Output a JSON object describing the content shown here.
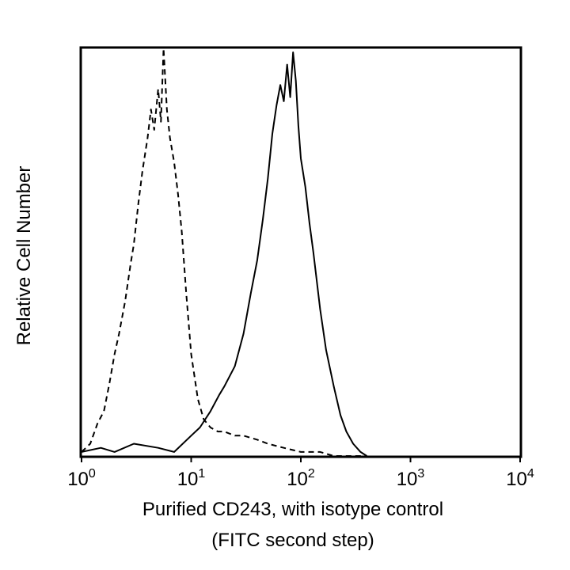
{
  "chart_data": {
    "type": "line",
    "title": "",
    "xlabel_lines": [
      "Purified CD243, with isotype control",
      "(FITC second step)"
    ],
    "ylabel": "Relative Cell Number",
    "x_scale": "log",
    "xlim": [
      1,
      10000
    ],
    "ylim": [
      0,
      100
    ],
    "x_ticks": [
      {
        "value": 1,
        "base": "10",
        "exp": "0"
      },
      {
        "value": 10,
        "base": "10",
        "exp": "1"
      },
      {
        "value": 100,
        "base": "10",
        "exp": "2"
      },
      {
        "value": 1000,
        "base": "10",
        "exp": "3"
      },
      {
        "value": 10000,
        "base": "10",
        "exp": "4"
      }
    ],
    "grid": false,
    "legend": "none",
    "series": [
      {
        "style": "dashed",
        "color": "#000000",
        "x": [
          1.0,
          1.2,
          1.4,
          1.6,
          1.8,
          2.0,
          2.2,
          2.5,
          2.8,
          3.0,
          3.3,
          3.6,
          4.0,
          4.3,
          4.6,
          5.0,
          5.3,
          5.6,
          6.0,
          6.4,
          7.0,
          7.6,
          8.2,
          9.0,
          10.0,
          11.5,
          13.0,
          15.0,
          17.5,
          20.0,
          25.0,
          30.0,
          40.0,
          50.0,
          70.0,
          100.0,
          150.0,
          200.0,
          300.0,
          400.0
        ],
        "y": [
          1,
          3,
          8,
          11,
          18,
          25,
          30,
          38,
          47,
          52,
          62,
          70,
          78,
          85,
          80,
          90,
          82,
          100,
          85,
          78,
          72,
          64,
          55,
          40,
          25,
          14,
          9,
          7,
          6,
          6,
          5,
          5,
          4,
          3,
          2,
          1,
          1,
          0,
          0,
          0
        ]
      },
      {
        "style": "solid",
        "color": "#000000",
        "x": [
          1.0,
          1.5,
          2.0,
          3.0,
          5.0,
          7.0,
          10.0,
          12.0,
          15.0,
          18.0,
          20.0,
          25.0,
          30.0,
          35.0,
          40.0,
          45.0,
          50.0,
          55.0,
          60.0,
          65.0,
          70.0,
          75.0,
          80.0,
          85.0,
          90.0,
          95.0,
          100.0,
          110.0,
          120.0,
          130.0,
          150.0,
          170.0,
          200.0,
          230.0,
          260.0,
          300.0,
          350.0,
          400.0
        ],
        "y": [
          1,
          2,
          1,
          3,
          2,
          1,
          5,
          7,
          11,
          15,
          17,
          22,
          30,
          40,
          48,
          58,
          68,
          79,
          86,
          91,
          87,
          96,
          88,
          99,
          92,
          81,
          73,
          66,
          57,
          50,
          36,
          26,
          17,
          10,
          6,
          3,
          1,
          0
        ]
      }
    ]
  }
}
